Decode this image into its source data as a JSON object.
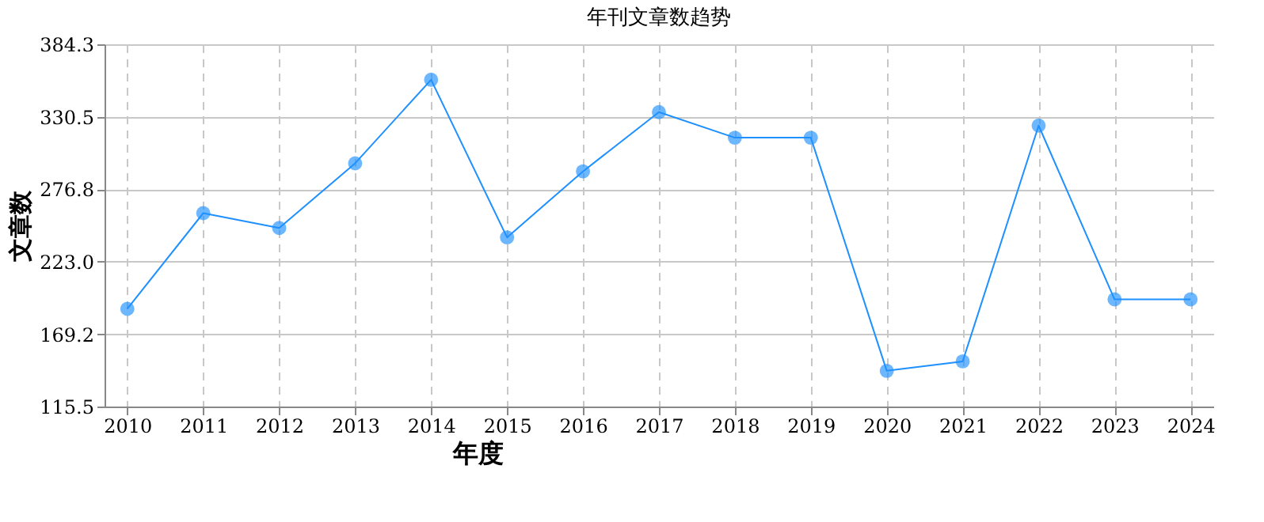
{
  "chart_data": {
    "type": "line",
    "title": "年刊文章数趋势",
    "xlabel": "年度",
    "ylabel": "文章数",
    "categories": [
      "2010",
      "2011",
      "2012",
      "2013",
      "2014",
      "2015",
      "2016",
      "2017",
      "2018",
      "2019",
      "2020",
      "2021",
      "2022",
      "2023",
      "2024"
    ],
    "series": [
      {
        "color": "#1e90ff",
        "values": [
          188,
          259,
          248,
          296,
          358,
          241,
          290,
          334,
          315,
          315,
          142,
          149,
          324,
          195,
          195
        ]
      }
    ],
    "ylim": [
      115.5,
      384.3
    ],
    "yticks": [
      115.5,
      169.2,
      {
        "value": 223,
        "label": "223.0"
      },
      276.8,
      330.5,
      384.3
    ],
    "grid": true,
    "marker": "circle",
    "line_style": "solid"
  }
}
